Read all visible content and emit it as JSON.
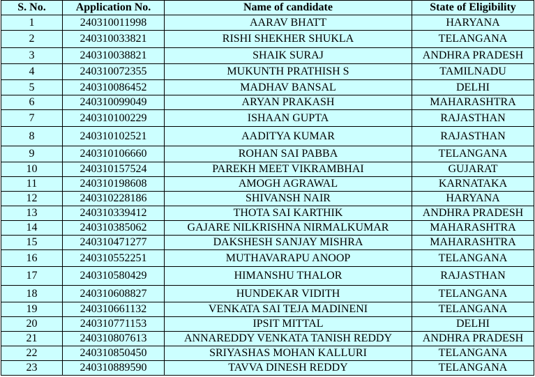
{
  "table": {
    "headers": [
      "S. No.",
      "Application No.",
      "Name of candidate",
      "State of Eligibility"
    ],
    "rows": [
      [
        "1",
        "240310011998",
        "AARAV BHATT",
        "HARYANA"
      ],
      [
        "2",
        "240310033821",
        "RISHI SHEKHER SHUKLA",
        "TELANGANA"
      ],
      [
        "3",
        "240310038821",
        "SHAIK SURAJ",
        "ANDHRA PRADESH"
      ],
      [
        "4",
        "240310072355",
        "MUKUNTH PRATHISH S",
        "TAMILNADU"
      ],
      [
        "5",
        "240310086452",
        "MADHAV BANSAL",
        "DELHI"
      ],
      [
        "6",
        "240310099049",
        "ARYAN PRAKASH",
        "MAHARASHTRA"
      ],
      [
        "7",
        "240310100229",
        "ISHAAN GUPTA",
        "RAJASTHAN"
      ],
      [
        "8",
        "240310102521",
        "AADITYA KUMAR",
        "RAJASTHAN"
      ],
      [
        "9",
        "240310106660",
        "ROHAN SAI PABBA",
        "TELANGANA"
      ],
      [
        "10",
        "240310157524",
        "PAREKH MEET VIKRAMBHAI",
        "GUJARAT"
      ],
      [
        "11",
        "240310198608",
        "AMOGH AGRAWAL",
        "KARNATAKA"
      ],
      [
        "12",
        "240310228186",
        "SHIVANSH NAIR",
        "HARYANA"
      ],
      [
        "13",
        "240310339412",
        "THOTA SAI KARTHIK",
        "ANDHRA PRADESH"
      ],
      [
        "14",
        "240310385062",
        "GAJARE NILKRISHNA NIRMALKUMAR",
        "MAHARASHTRA"
      ],
      [
        "15",
        "240310471277",
        "DAKSHESH SANJAY MISHRA",
        "MAHARASHTRA"
      ],
      [
        "16",
        "240310552251",
        "MUTHAVARAPU ANOOP",
        "TELANGANA"
      ],
      [
        "17",
        "240310580429",
        "HIMANSHU THALOR",
        "RAJASTHAN"
      ],
      [
        "18",
        "240310608827",
        "HUNDEKAR VIDITH",
        "TELANGANA"
      ],
      [
        "19",
        "240310661132",
        "VENKATA SAI TEJA MADINENI",
        "TELANGANA"
      ],
      [
        "20",
        "240310771153",
        "IPSIT MITTAL",
        "DELHI"
      ],
      [
        "21",
        "240310807613",
        "ANNAREDDY VENKATA TANISH REDDY",
        "ANDHRA PRADESH"
      ],
      [
        "22",
        "240310850450",
        "SRIYASHAS MOHAN KALLURI",
        "TELANGANA"
      ],
      [
        "23",
        "240310889590",
        "TAVVA DINESH REDDY",
        "TELANGANA"
      ]
    ]
  },
  "colors": {
    "background": "#ccffff",
    "border": "#000000"
  }
}
